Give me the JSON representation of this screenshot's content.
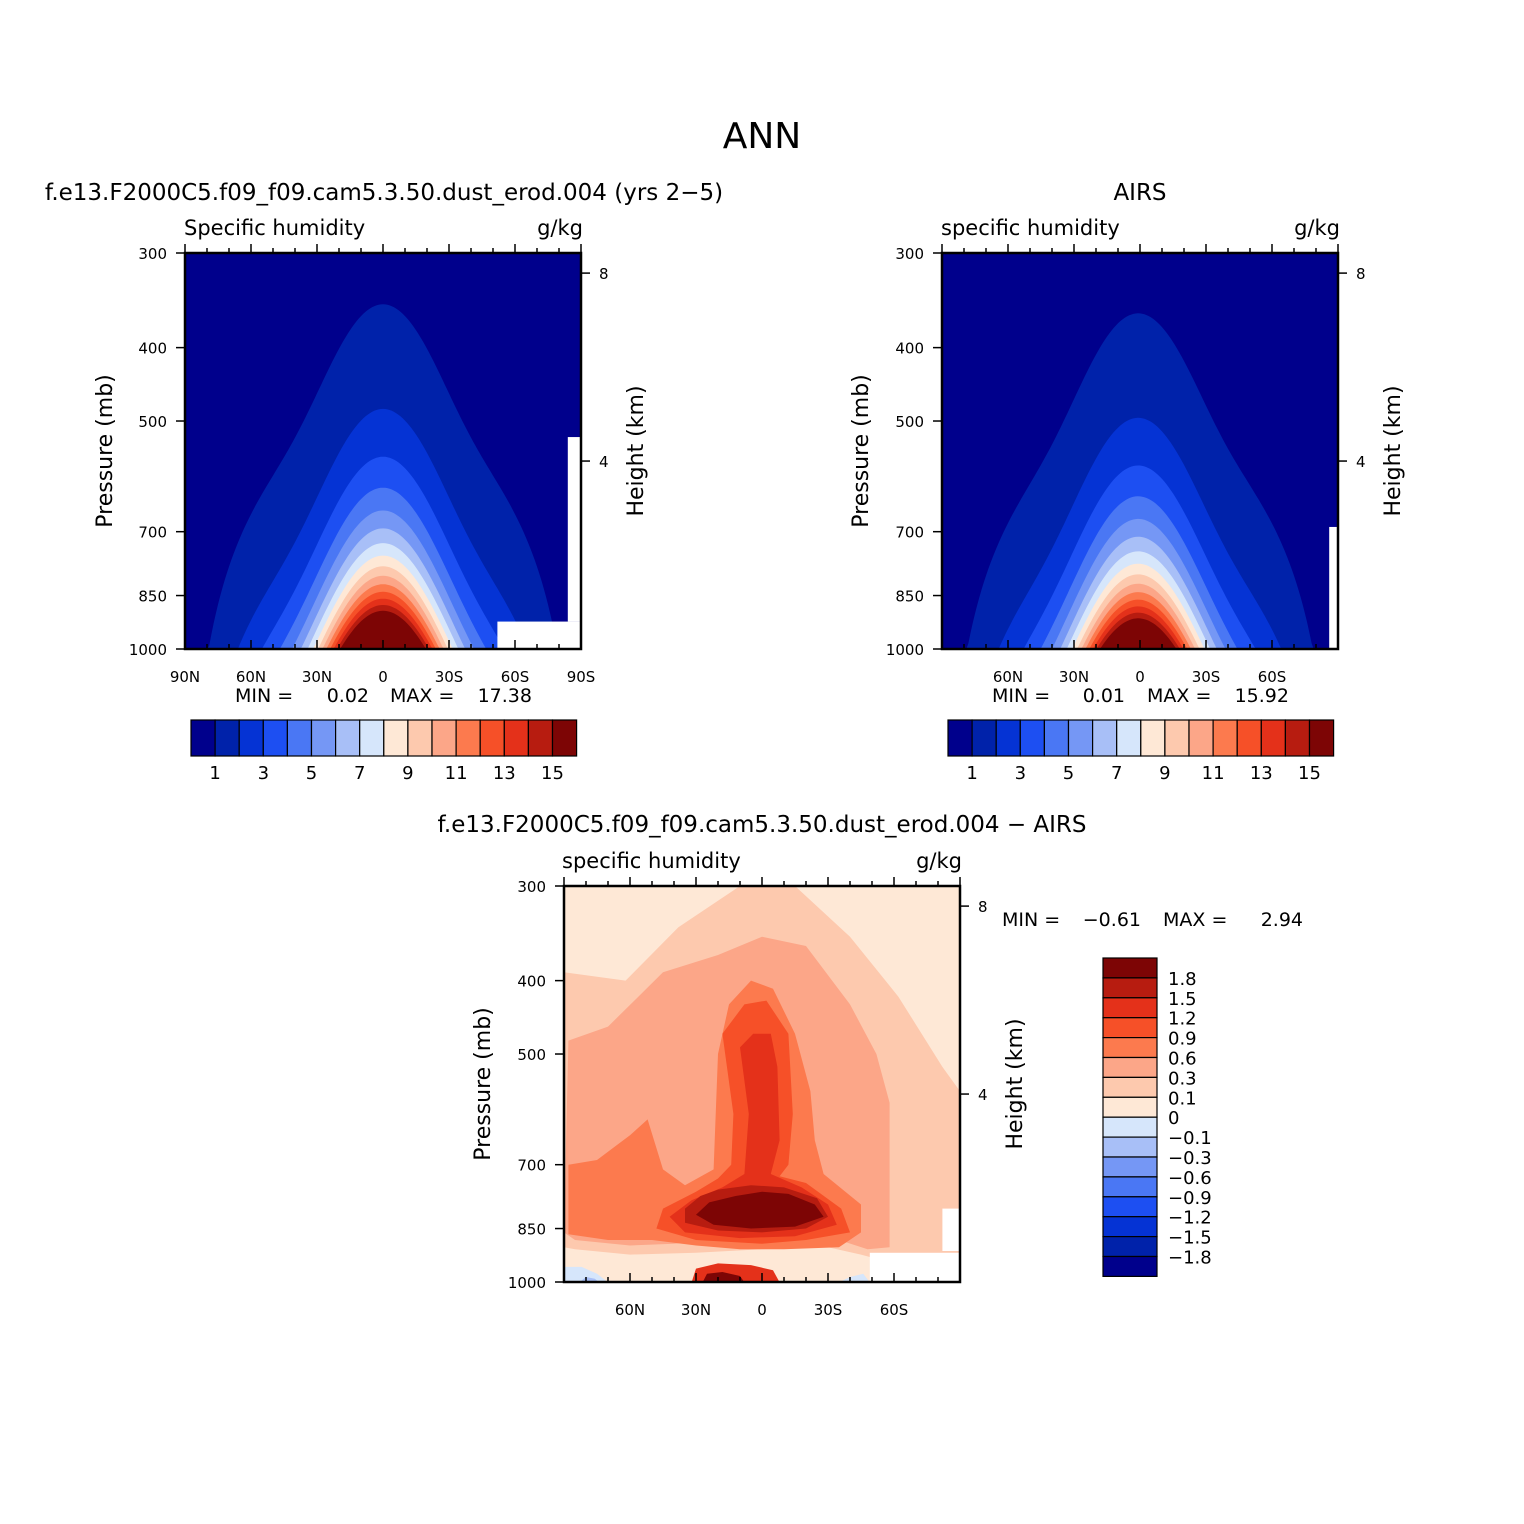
{
  "main_title": "ANN",
  "panels": [
    {
      "id": "model",
      "title": "f.e13.F2000C5.f09_f09.cam5.3.50.dust_erod.004 (yrs 2−5)",
      "var_label": "Specific humidity",
      "units": "g/kg",
      "ylabel": "Pressure (mb)",
      "ylabel_right": "Height (km)",
      "stats": {
        "min_label": "MIN =",
        "min": "0.02",
        "max_label": "MAX =",
        "max": "17.38"
      }
    },
    {
      "id": "obs",
      "title": "AIRS",
      "var_label": "specific humidity",
      "units": "g/kg",
      "ylabel": "Pressure (mb)",
      "ylabel_right": "Height (km)",
      "stats": {
        "min_label": "MIN =",
        "min": "0.01",
        "max_label": "MAX =",
        "max": "15.92"
      }
    },
    {
      "id": "diff",
      "title": "f.e13.F2000C5.f09_f09.cam5.3.50.dust_erod.004 − AIRS",
      "var_label": "specific humidity",
      "units": "g/kg",
      "ylabel": "Pressure (mb)",
      "ylabel_right": "Height (km)",
      "stats": {
        "min_label": "MIN =",
        "min": "−0.61",
        "max_label": "MAX =",
        "max": "2.94"
      }
    }
  ],
  "chart_data": [
    {
      "type": "heatmap",
      "title": "Specific humidity (model)",
      "xlabel": "",
      "ylabel": "Pressure (mb)",
      "ylabel_right": "Height (km)",
      "x_ticks": [
        "90N",
        "60N",
        "30N",
        "0",
        "30S",
        "60S",
        "90S"
      ],
      "x_tick_values": [
        90,
        60,
        30,
        0,
        -30,
        -60,
        -90
      ],
      "y_ticks": [
        "300",
        "400",
        "500",
        "700",
        "850",
        "1000"
      ],
      "y_tick_values": [
        300,
        400,
        500,
        700,
        850,
        1000
      ],
      "y_right_ticks": [
        "8",
        "4"
      ],
      "y_right_tick_values_km": [
        8,
        4
      ],
      "ylim": [
        1000,
        300
      ],
      "xlim": [
        90,
        -90
      ],
      "min": 0.02,
      "max": 17.38,
      "peak_latitude": 0,
      "contour_levels": [
        1,
        2,
        3,
        4,
        5,
        6,
        7,
        8,
        9,
        10,
        11,
        12,
        13,
        14,
        15
      ],
      "colorbar_labels": [
        "1",
        "3",
        "5",
        "7",
        "9",
        "11",
        "13",
        "15"
      ]
    },
    {
      "type": "heatmap",
      "title": "specific humidity (AIRS)",
      "xlabel": "",
      "ylabel": "Pressure (mb)",
      "ylabel_right": "Height (km)",
      "x_ticks": [
        "60N",
        "30N",
        "0",
        "30S",
        "60S"
      ],
      "x_tick_values": [
        60,
        30,
        0,
        -30,
        -60
      ],
      "y_ticks": [
        "300",
        "400",
        "500",
        "700",
        "850",
        "1000"
      ],
      "y_tick_values": [
        300,
        400,
        500,
        700,
        850,
        1000
      ],
      "y_right_ticks": [
        "8",
        "4"
      ],
      "ylim": [
        1000,
        300
      ],
      "min": 0.01,
      "max": 15.92,
      "peak_latitude": 0,
      "contour_levels": [
        1,
        2,
        3,
        4,
        5,
        6,
        7,
        8,
        9,
        10,
        11,
        12,
        13,
        14,
        15
      ],
      "colorbar_labels": [
        "1",
        "3",
        "5",
        "7",
        "9",
        "11",
        "13",
        "15"
      ]
    },
    {
      "type": "heatmap",
      "title": "specific humidity (model − AIRS)",
      "xlabel": "",
      "ylabel": "Pressure (mb)",
      "ylabel_right": "Height (km)",
      "x_ticks": [
        "60N",
        "30N",
        "0",
        "30S",
        "60S"
      ],
      "x_tick_values": [
        60,
        30,
        0,
        -30,
        -60
      ],
      "y_ticks": [
        "300",
        "400",
        "500",
        "700",
        "850",
        "1000"
      ],
      "y_tick_values": [
        300,
        400,
        500,
        700,
        850,
        1000
      ],
      "y_right_ticks": [
        "8",
        "4"
      ],
      "ylim": [
        1000,
        300
      ],
      "min": -0.61,
      "max": 2.94,
      "contour_levels": [
        -1.8,
        -1.5,
        -1.2,
        -0.9,
        -0.6,
        -0.3,
        -0.1,
        0,
        0.1,
        0.3,
        0.6,
        0.9,
        1.2,
        1.5,
        1.8
      ],
      "colorbar_labels": [
        "1.8",
        "1.5",
        "1.2",
        "0.9",
        "0.6",
        "0.3",
        "0.1",
        "0",
        "−0.1",
        "−0.3",
        "−0.6",
        "−0.9",
        "−1.2",
        "−1.5",
        "−1.8"
      ]
    }
  ],
  "colors": {
    "humidity_scale": [
      "#00008c",
      "#0022aa",
      "#0533d4",
      "#1d4ff2",
      "#4a77f4",
      "#7597f5",
      "#a8bff7",
      "#d6e6fb",
      "#fee8d6",
      "#fdc9ae",
      "#fca688",
      "#fc7a4e",
      "#f65028",
      "#e4311a",
      "#b71c10",
      "#7d0505"
    ],
    "diff_scale": [
      "#00008c",
      "#0022aa",
      "#0533d4",
      "#1d4ff2",
      "#4a77f4",
      "#7597f5",
      "#a8bff7",
      "#d6e6fb",
      "#fee8d6",
      "#fdc9ae",
      "#fca688",
      "#fc7a4e",
      "#f65028",
      "#e4311a",
      "#b71c10",
      "#7d0505"
    ]
  }
}
